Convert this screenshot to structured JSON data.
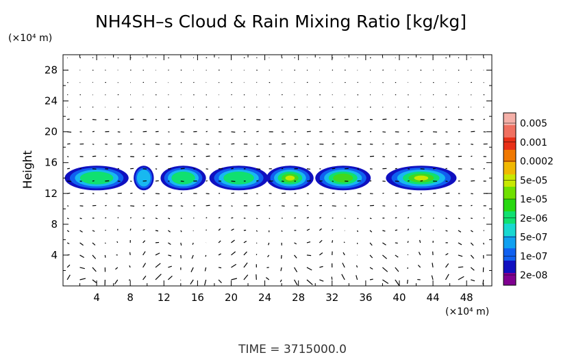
{
  "chart_data": {
    "type": "heatmap",
    "title": "NH4SH–s Cloud & Rain Mixing Ratio [kg/kg]",
    "ylabel": "Height",
    "xunit": "(×10⁴ m)",
    "yunit": "(×10⁴ m)",
    "time_label": "TIME  =  3715000.0",
    "xlim": [
      0,
      51
    ],
    "ylim": [
      0,
      30
    ],
    "xticks": [
      4,
      8,
      12,
      16,
      20,
      24,
      28,
      32,
      36,
      40,
      44,
      48
    ],
    "yticks": [
      4,
      8,
      12,
      16,
      20,
      24,
      28
    ],
    "colorbar": {
      "labels": [
        "0.005",
        "0.001",
        "0.0002",
        "5e-05",
        "1e-05",
        "2e-06",
        "5e-07",
        "1e-07",
        "2e-08"
      ],
      "colors": [
        "#f5b0a8",
        "#f07060",
        "#e83018",
        "#f07800",
        "#f0b800",
        "#c8e800",
        "#70e000",
        "#28d810",
        "#10e070",
        "#18d8d0",
        "#10a0f0",
        "#1060f0",
        "#1010c0",
        "#800090"
      ]
    },
    "cloud_band": {
      "y_center": 14,
      "y_extent": [
        12.5,
        15.7
      ],
      "segments": [
        {
          "x": [
            0.2,
            7.8
          ],
          "peak": "2e-06"
        },
        {
          "x": [
            8.4,
            10.8
          ],
          "peak": "5e-07"
        },
        {
          "x": [
            11.6,
            17.0
          ],
          "peak": "2e-06"
        },
        {
          "x": [
            17.4,
            24.4
          ],
          "peak": "2e-06"
        },
        {
          "x": [
            24.2,
            29.8
          ],
          "peak": "5e-05"
        },
        {
          "x": [
            30.0,
            36.6
          ],
          "peak": "1e-05"
        },
        {
          "x": [
            38.4,
            46.8
          ],
          "peak": "5e-05"
        }
      ]
    }
  }
}
